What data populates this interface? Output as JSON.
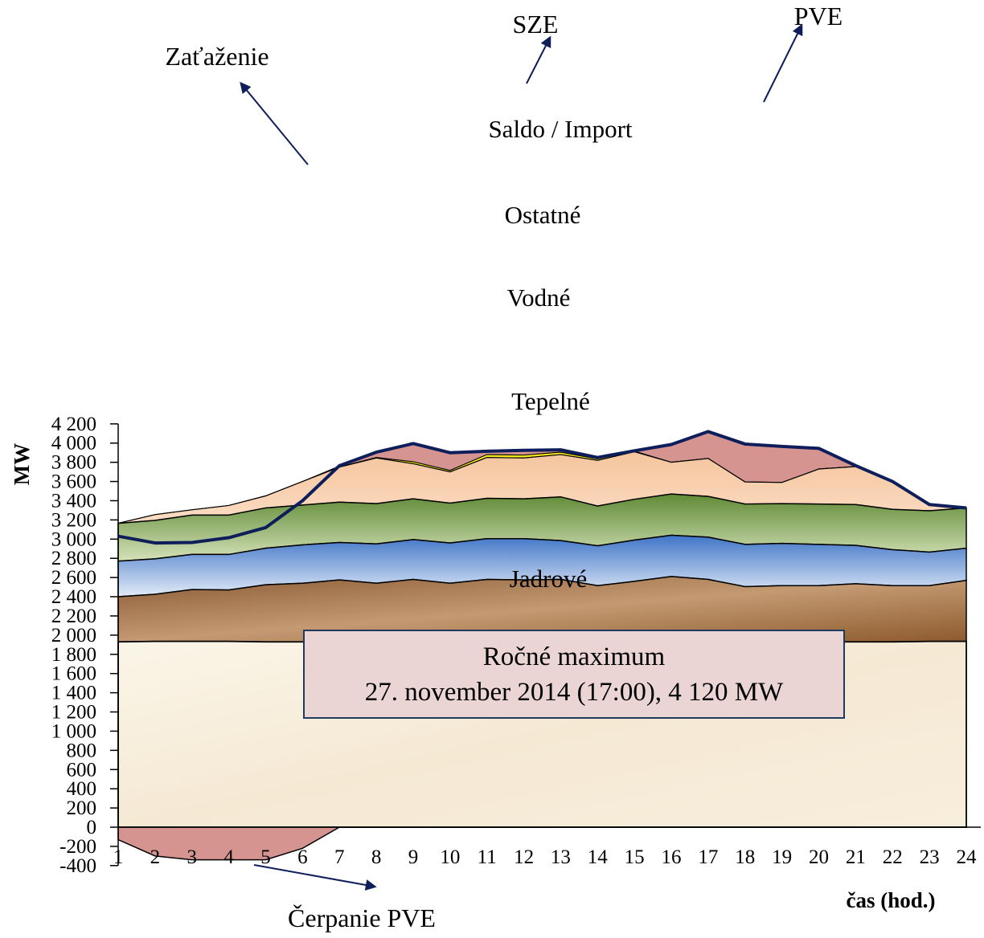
{
  "chart_data": {
    "type": "area",
    "title": "",
    "xlabel": "čas (hod.)",
    "ylabel": "MW",
    "ylim": [
      -400,
      4200
    ],
    "yticks": [
      -400,
      -200,
      0,
      200,
      400,
      600,
      800,
      1000,
      1200,
      1400,
      1600,
      1800,
      2000,
      2200,
      2400,
      2600,
      2800,
      3000,
      3200,
      3400,
      3600,
      3800,
      4000,
      4200
    ],
    "ytick_labels": [
      "-400",
      "-200",
      "0",
      "200",
      "400",
      "600",
      "800",
      "1 000",
      "1 200",
      "1 400",
      "1 600",
      "1 800",
      "2 000",
      "2 200",
      "2 400",
      "2 600",
      "2 800",
      "3 000",
      "3 200",
      "3 400",
      "3 600",
      "3 800",
      "4 000",
      "4 200"
    ],
    "x": [
      1,
      2,
      3,
      4,
      5,
      6,
      7,
      8,
      9,
      10,
      11,
      12,
      13,
      14,
      15,
      16,
      17,
      18,
      19,
      20,
      21,
      22,
      23,
      24
    ],
    "x_labels": [
      "1",
      "2",
      "3",
      "4",
      "5",
      "6",
      "7",
      "8",
      "9",
      "10",
      "11",
      "12",
      "13",
      "14",
      "15",
      "16",
      "17",
      "18",
      "19",
      "20",
      "21",
      "22",
      "23",
      "24"
    ],
    "grid": false,
    "stacked_boundaries": {
      "Jadrové": [
        1930,
        1935,
        1935,
        1935,
        1930,
        1930,
        1930,
        1930,
        1930,
        1930,
        1930,
        1930,
        1930,
        1930,
        1930,
        1930,
        1930,
        1930,
        1930,
        1930,
        1930,
        1930,
        1935,
        1935
      ],
      "Tepelné": [
        2400,
        2425,
        2475,
        2470,
        2525,
        2540,
        2575,
        2540,
        2580,
        2540,
        2580,
        2575,
        2580,
        2515,
        2560,
        2610,
        2580,
        2505,
        2515,
        2515,
        2535,
        2515,
        2515,
        2570
      ],
      "Vodné": [
        2770,
        2795,
        2840,
        2840,
        2905,
        2940,
        2965,
        2950,
        2995,
        2960,
        3005,
        3005,
        2985,
        2930,
        2990,
        3040,
        3020,
        2945,
        2955,
        2945,
        2935,
        2890,
        2865,
        2905
      ],
      "Ostatné": [
        3165,
        3195,
        3250,
        3250,
        3325,
        3355,
        3385,
        3370,
        3420,
        3375,
        3425,
        3420,
        3440,
        3345,
        3415,
        3470,
        3445,
        3365,
        3370,
        3365,
        3360,
        3310,
        3295,
        3325
      ],
      "Saldo / Import": [
        3165,
        3255,
        3305,
        3350,
        3450,
        3600,
        3750,
        3845,
        3785,
        3700,
        3850,
        3845,
        3880,
        3820,
        3910,
        3800,
        3840,
        3595,
        3590,
        3730,
        3755,
        3600,
        3360,
        3325
      ],
      "SZE": [
        3165,
        3255,
        3305,
        3350,
        3450,
        3600,
        3750,
        3850,
        3805,
        3715,
        3880,
        3875,
        3905,
        3835,
        3915,
        3800,
        3840,
        3595,
        3590,
        3730,
        3755,
        3600,
        3360,
        3325
      ],
      "PVE": [
        3165,
        3255,
        3305,
        3350,
        3450,
        3600,
        3760,
        3905,
        3995,
        3900,
        3915,
        3925,
        3930,
        3850,
        3920,
        3985,
        4120,
        3990,
        3965,
        3945,
        3765,
        3600,
        3360,
        3325
      ]
    },
    "series": [
      {
        "name": "Zaťaženie",
        "values": [
          3030,
          2960,
          2965,
          3015,
          3120,
          3400,
          3765,
          3905,
          3995,
          3900,
          3915,
          3925,
          3930,
          3850,
          3920,
          3985,
          4120,
          3990,
          3965,
          3945,
          3765,
          3600,
          3360,
          3325
        ]
      },
      {
        "name": "Čerpanie PVE",
        "values": [
          -130,
          -300,
          -340,
          -340,
          -340,
          -220,
          0,
          0,
          0,
          0,
          0,
          0,
          0,
          0,
          0,
          0,
          0,
          0,
          0,
          0,
          0,
          0,
          0,
          0
        ]
      }
    ],
    "annotations": {
      "box_line1": "Ročné maximum",
      "box_line2": "27. november 2014 (17:00), 4 120 MW"
    }
  },
  "colors": {
    "jadrove": "#f6ead7",
    "tepelne": "#b07b4a",
    "vodne": "#5b8ed0",
    "ostatne": "#7fa154",
    "saldo": "#f7ccaa",
    "sze": "#f5e81c",
    "pve": "#d59490",
    "load_line": "#0d1e5b",
    "box_fill": "#ead5d4",
    "box_border": "#1f3a5f"
  }
}
